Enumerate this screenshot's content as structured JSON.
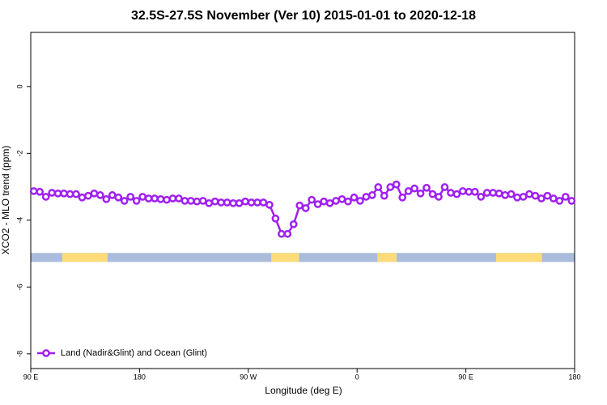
{
  "chart_data": {
    "type": "line",
    "title": "32.5S-27.5S November (Ver 10)   2015-01-01 to 2020-12-18",
    "x_label": "Longitude (deg E)",
    "y_label": "XCO2 - MLO trend (ppm)",
    "xlim": [
      90,
      540
    ],
    "ylim": [
      -8.44,
      1.62
    ],
    "xticks": [
      {
        "value": 90,
        "label": "90 E"
      },
      {
        "value": 180,
        "label": "180"
      },
      {
        "value": 270,
        "label": "90 W"
      },
      {
        "value": 360,
        "label": "0"
      },
      {
        "value": 450,
        "label": "90 E"
      },
      {
        "value": 540,
        "label": "180"
      }
    ],
    "yticks": [
      0,
      -2,
      -4,
      -6,
      -8
    ],
    "legend": "bottomleft",
    "surface_band": {
      "ylim": [
        -5.25,
        -4.98
      ],
      "ocean_color": "#a9bcdc",
      "land_color": "#fddb7a",
      "land_spans": [
        [
          116,
          153.6
        ],
        [
          289,
          312
        ],
        [
          376.7,
          392.7
        ],
        [
          475,
          513
        ]
      ]
    },
    "x": [
      92.5,
      97.5,
      102.5,
      107.5,
      112.5,
      117.5,
      122.5,
      127.5,
      132.5,
      137.5,
      142.5,
      147.5,
      152.5,
      157.5,
      162.5,
      167.5,
      172.5,
      177.5,
      182.5,
      187.5,
      192.5,
      197.5,
      202.5,
      207.5,
      212.5,
      217.5,
      222.5,
      227.5,
      232.5,
      237.5,
      242.5,
      247.5,
      252.5,
      257.5,
      262.5,
      267.5,
      272.5,
      277.5,
      282.5,
      287.5,
      292.5,
      297.5,
      302.5,
      307.5,
      312.5,
      317.5,
      322.5,
      327.5,
      332.5,
      337.5,
      342.5,
      347.5,
      352.5,
      357.5,
      362.5,
      367.5,
      372.5,
      377.5,
      382.5,
      387.5,
      392.5,
      397.5,
      402.5,
      407.5,
      412.5,
      417.5,
      422.5,
      427.5,
      432.5,
      437.5,
      442.5,
      447.5,
      452.5,
      457.5,
      462.5,
      467.5,
      472.5,
      477.5,
      482.5,
      487.5,
      492.5,
      497.5,
      502.5,
      507.5,
      512.5,
      517.5,
      522.5,
      527.5,
      532.5,
      537.5
    ],
    "series": [
      {
        "name": "Land (Nadir&Glint) and Ocean (Glint)",
        "color": "#a020f0",
        "values": [
          -3.13,
          -3.15,
          -3.3,
          -3.18,
          -3.2,
          -3.2,
          -3.22,
          -3.22,
          -3.32,
          -3.27,
          -3.2,
          -3.25,
          -3.37,
          -3.25,
          -3.32,
          -3.42,
          -3.3,
          -3.42,
          -3.3,
          -3.35,
          -3.35,
          -3.37,
          -3.39,
          -3.35,
          -3.35,
          -3.42,
          -3.42,
          -3.44,
          -3.42,
          -3.49,
          -3.44,
          -3.47,
          -3.47,
          -3.49,
          -3.49,
          -3.44,
          -3.47,
          -3.47,
          -3.47,
          -3.54,
          -3.95,
          -4.41,
          -4.41,
          -4.12,
          -3.56,
          -3.64,
          -3.39,
          -3.52,
          -3.44,
          -3.49,
          -3.42,
          -3.37,
          -3.44,
          -3.32,
          -3.42,
          -3.3,
          -3.25,
          -3.01,
          -3.27,
          -3.01,
          -2.93,
          -3.32,
          -3.13,
          -3.05,
          -3.2,
          -3.03,
          -3.22,
          -3.3,
          -3.01,
          -3.18,
          -3.22,
          -3.13,
          -3.15,
          -3.15,
          -3.3,
          -3.18,
          -3.18,
          -3.2,
          -3.25,
          -3.22,
          -3.32,
          -3.3,
          -3.22,
          -3.27,
          -3.35,
          -3.27,
          -3.35,
          -3.42,
          -3.3,
          -3.42
        ]
      }
    ]
  }
}
